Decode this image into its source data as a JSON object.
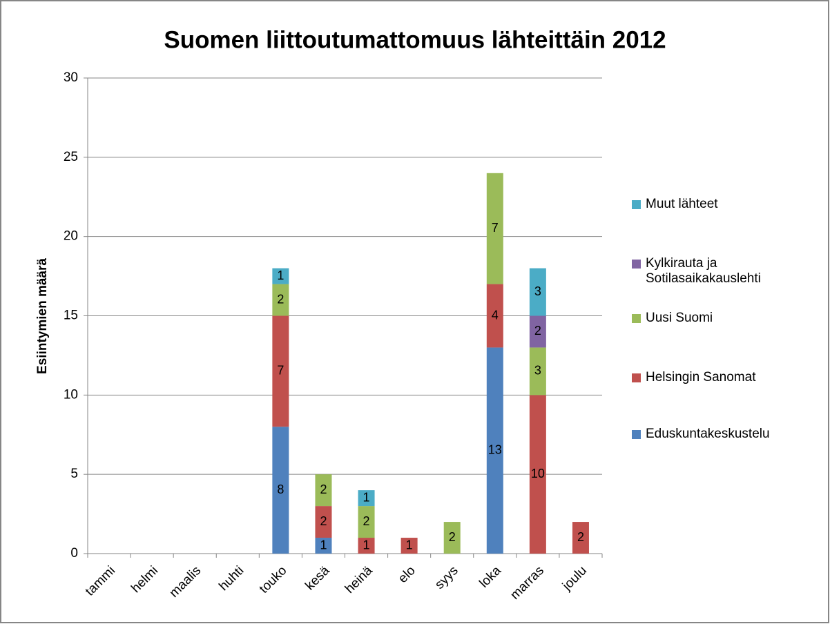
{
  "chart_data": {
    "type": "stacked_bar",
    "title": "Suomen liittoutumattomuus lähteittäin 2012",
    "y_label": "Esiintymien määrä",
    "categories": [
      "tammi",
      "helmi",
      "maalis",
      "huhti",
      "touko",
      "kesä",
      "heinä",
      "elo",
      "syys",
      "loka",
      "marras",
      "joulu"
    ],
    "series": [
      {
        "name": "Eduskuntakeskustelu",
        "color": "#4f81bd",
        "values": [
          0,
          0,
          0,
          0,
          8,
          1,
          0,
          0,
          0,
          13,
          0,
          0
        ]
      },
      {
        "name": "Helsingin Sanomat",
        "color": "#c0504d",
        "values": [
          0,
          0,
          0,
          0,
          7,
          2,
          1,
          1,
          0,
          4,
          10,
          2
        ]
      },
      {
        "name": "Uusi Suomi",
        "color": "#9bbb59",
        "values": [
          0,
          0,
          0,
          0,
          2,
          2,
          2,
          0,
          2,
          7,
          3,
          0
        ]
      },
      {
        "name": "Kylkirauta ja Sotilasaikakauslehti",
        "color": "#8064a2",
        "values": [
          0,
          0,
          0,
          0,
          0,
          0,
          0,
          0,
          0,
          0,
          2,
          0
        ]
      },
      {
        "name": "Muut lähteet",
        "color": "#4bacc6",
        "values": [
          0,
          0,
          0,
          0,
          1,
          0,
          1,
          0,
          0,
          0,
          3,
          0
        ]
      }
    ],
    "ylim": [
      0,
      30
    ],
    "yticks": [
      0,
      5,
      10,
      15,
      20,
      25,
      30
    ],
    "grid": true,
    "legend": "right"
  }
}
